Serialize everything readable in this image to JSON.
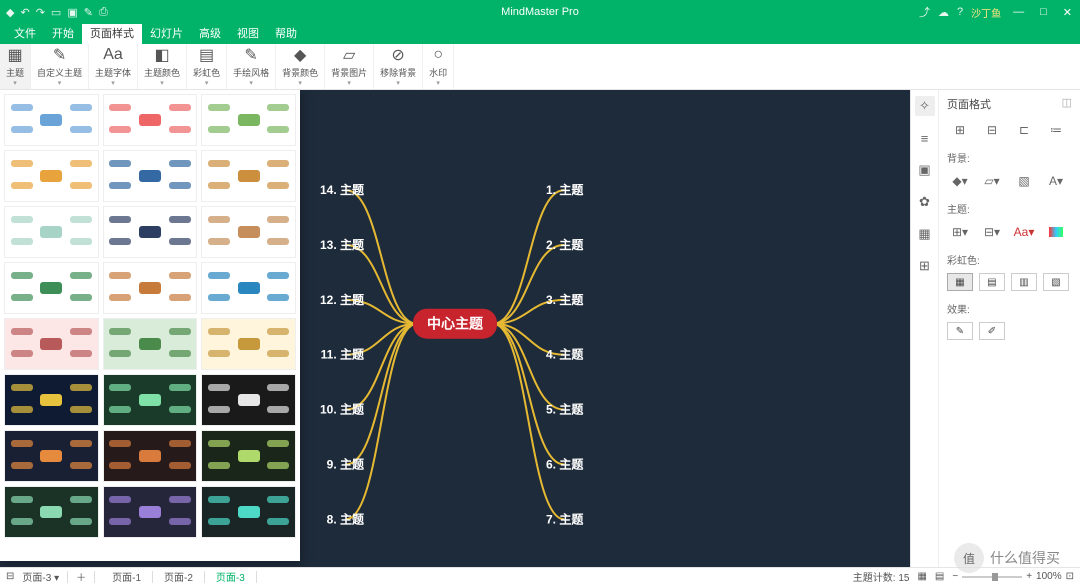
{
  "app": {
    "title": "MindMaster Pro",
    "user": "沙丁鱼"
  },
  "menu": {
    "tabs": [
      "文件",
      "开始",
      "页面样式",
      "幻灯片",
      "高级",
      "视图",
      "帮助"
    ],
    "active_index": 2
  },
  "ribbon": {
    "groups": [
      {
        "icon": "▦",
        "label": "主题"
      },
      {
        "icon": "✎",
        "label": "自定义主题"
      },
      {
        "icon": "Aa",
        "label": "主题字体"
      },
      {
        "icon": "◧",
        "label": "主题颜色"
      },
      {
        "icon": "▤",
        "label": "彩虹色"
      },
      {
        "icon": "✎",
        "label": "手绘风格"
      },
      {
        "icon": "◆",
        "label": "背景颜色"
      },
      {
        "icon": "▱",
        "label": "背景图片"
      },
      {
        "icon": "⊘",
        "label": "移除背景"
      },
      {
        "icon": "○",
        "label": "水印"
      }
    ]
  },
  "mindmap": {
    "central": "中心主题",
    "central_color": "#c7242d",
    "branch_color": "#e6b933",
    "canvas_bg": "#1e2b3b",
    "text_color": "#ffffff",
    "left_topics": [
      {
        "num": "14.",
        "label": "主题"
      },
      {
        "num": "13.",
        "label": "主题"
      },
      {
        "num": "12.",
        "label": "主题"
      },
      {
        "num": "11.",
        "label": "主题"
      },
      {
        "num": "10.",
        "label": "主题"
      },
      {
        "num": "9.",
        "label": "主题"
      },
      {
        "num": "8.",
        "label": "主题"
      }
    ],
    "right_topics": [
      {
        "num": "1.",
        "label": "主题"
      },
      {
        "num": "2.",
        "label": "主题"
      },
      {
        "num": "3.",
        "label": "主题"
      },
      {
        "num": "4.",
        "label": "主题"
      },
      {
        "num": "5.",
        "label": "主题"
      },
      {
        "num": "6.",
        "label": "主题"
      },
      {
        "num": "7.",
        "label": "主题"
      }
    ],
    "font_size": 12,
    "central_font_size": 14
  },
  "theme_thumbs": [
    {
      "bg": "#ffffff",
      "accent": "#6aa3d8"
    },
    {
      "bg": "#ffffff",
      "accent": "#e66"
    },
    {
      "bg": "#ffffff",
      "accent": "#7bb661"
    },
    {
      "bg": "#ffffff",
      "accent": "#e8a33d"
    },
    {
      "bg": "#ffffff",
      "accent": "#3469a3"
    },
    {
      "bg": "#ffffff",
      "accent": "#cc8f3e"
    },
    {
      "bg": "#ffffff",
      "accent": "#a7d4c6"
    },
    {
      "bg": "#ffffff",
      "accent": "#2d3e63"
    },
    {
      "bg": "#ffffff",
      "accent": "#c58e5a"
    },
    {
      "bg": "#ffffff",
      "accent": "#3d8f57"
    },
    {
      "bg": "#ffffff",
      "accent": "#c67b3a"
    },
    {
      "bg": "#ffffff",
      "accent": "#2a86bf"
    },
    {
      "bg": "#fde6e6",
      "accent": "#b85a5a"
    },
    {
      "bg": "#d9ecd9",
      "accent": "#4a8a4a"
    },
    {
      "bg": "#fff5dc",
      "accent": "#c6993d"
    },
    {
      "bg": "#0f1a33",
      "accent": "#e6c23d"
    },
    {
      "bg": "#1a3a2a",
      "accent": "#7fe0a8"
    },
    {
      "bg": "#1a1a1a",
      "accent": "#e6e6e6"
    },
    {
      "bg": "#1a2033",
      "accent": "#e68a3d"
    },
    {
      "bg": "#261a1a",
      "accent": "#d97b3d"
    },
    {
      "bg": "#1a261a",
      "accent": "#b0d96b"
    },
    {
      "bg": "#1a3326",
      "accent": "#8ad9b0"
    },
    {
      "bg": "#26263a",
      "accent": "#9a7fd9"
    },
    {
      "bg": "#1a2626",
      "accent": "#4dd9c6"
    }
  ],
  "rightpanel": {
    "title": "页面格式",
    "sections": {
      "background": "背景:",
      "theme": "主题:",
      "rainbow": "彩虹色:",
      "effect": "效果:"
    }
  },
  "statusbar": {
    "page_dropdown": "页面-3",
    "pages": [
      "页面-1",
      "页面-2",
      "页面-3"
    ],
    "active_page": 2,
    "topic_count_label": "主題计数:",
    "topic_count": "15",
    "zoom": "100%"
  },
  "watermark": {
    "text": "什么值得买"
  }
}
